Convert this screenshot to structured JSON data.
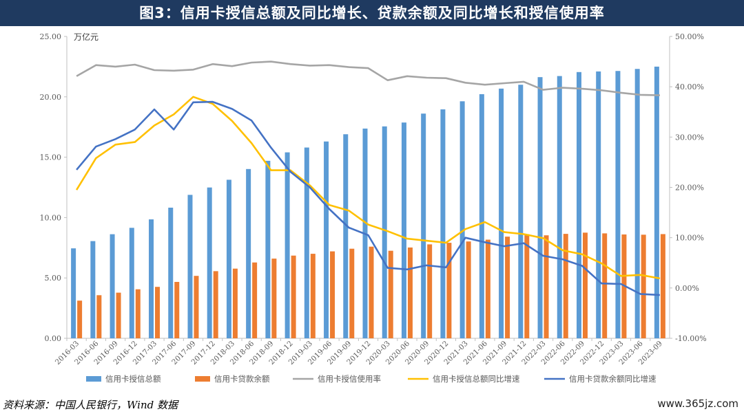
{
  "header": {
    "title": "图3：信用卡授信总额及同比增长、贷款余额及同比增长和授信使用率"
  },
  "footer": {
    "source": "资料来源：中国人民银行，Wind 数据",
    "watermark": "www.365jz.com"
  },
  "colors": {
    "banner": "#1f3a60",
    "blue_bar": "#5b9bd5",
    "orange_bar": "#ed7d31",
    "gray_line": "#a5a5a5",
    "yellow_line": "#ffc000",
    "blue_line": "#4472c4"
  },
  "chart_data": {
    "type": "bar",
    "unit_label": "万亿元",
    "categories": [
      "2016-03",
      "2016-06",
      "2016-09",
      "2016-12",
      "2017-03",
      "2017-06",
      "2017-09",
      "2017-12",
      "2018-03",
      "2018-06",
      "2018-09",
      "2018-12",
      "2019-03",
      "2019-06",
      "2019-09",
      "2019-12",
      "2020-03",
      "2020-06",
      "2020-09",
      "2020-12",
      "2021-03",
      "2021-06",
      "2021-09",
      "2021-12",
      "2022-03",
      "2022-06",
      "2022-09",
      "2022-12",
      "2023-03",
      "2023-06",
      "2023-09"
    ],
    "y_left": {
      "min": 0,
      "max": 25,
      "ticks": [
        "0.00",
        "5.00",
        "10.00",
        "15.00",
        "20.00",
        "25.00"
      ]
    },
    "y_right": {
      "min": -10,
      "max": 50,
      "ticks": [
        "-10.00%",
        "0.00%",
        "10.00%",
        "20.00%",
        "30.00%",
        "40.00%",
        "50.00%"
      ]
    },
    "bar_series": [
      {
        "name": "信用卡授信总额",
        "axis": "left",
        "values": [
          7.45,
          8.05,
          8.62,
          9.15,
          9.85,
          10.82,
          11.88,
          12.49,
          13.13,
          14.02,
          14.7,
          15.4,
          15.8,
          16.3,
          16.9,
          17.37,
          17.55,
          17.87,
          18.61,
          18.96,
          19.63,
          20.22,
          20.68,
          21.0,
          21.63,
          21.72,
          22.05,
          22.1,
          22.14,
          22.31,
          22.5
        ]
      },
      {
        "name": "信用卡贷款余额",
        "axis": "left",
        "values": [
          3.12,
          3.57,
          3.78,
          4.06,
          4.26,
          4.67,
          5.17,
          5.56,
          5.77,
          6.28,
          6.6,
          6.85,
          7.0,
          7.2,
          7.42,
          7.59,
          7.25,
          7.52,
          7.78,
          7.91,
          8.02,
          8.17,
          8.42,
          8.62,
          8.53,
          8.65,
          8.75,
          8.69,
          8.6,
          8.58,
          8.63
        ]
      }
    ],
    "line_series": [
      {
        "name": "信用卡授信使用率",
        "axis": "right",
        "values": [
          42.1,
          44.3,
          44.0,
          44.4,
          43.3,
          43.2,
          43.4,
          44.5,
          44.1,
          44.8,
          45.0,
          44.5,
          44.2,
          44.3,
          43.9,
          43.7,
          41.3,
          42.1,
          41.8,
          41.7,
          40.8,
          40.4,
          40.7,
          41.0,
          39.4,
          39.8,
          39.6,
          39.3,
          38.8,
          38.4,
          38.3
        ]
      },
      {
        "name": "信用卡授信总额同比增速",
        "axis": "right",
        "values": [
          19.5,
          25.8,
          28.5,
          29.0,
          32.3,
          34.5,
          38.0,
          36.6,
          33.2,
          28.8,
          23.4,
          23.4,
          20.4,
          16.5,
          15.4,
          12.6,
          11.3,
          9.8,
          9.4,
          9.0,
          11.7,
          13.1,
          11.1,
          10.7,
          9.9,
          7.5,
          6.7,
          4.9,
          2.4,
          2.6,
          1.9
        ]
      },
      {
        "name": "信用卡贷款余额同比增速",
        "axis": "right",
        "values": [
          23.5,
          28.1,
          29.6,
          31.5,
          35.5,
          31.5,
          36.9,
          37.0,
          35.6,
          33.3,
          27.9,
          23.1,
          20.0,
          15.7,
          12.0,
          10.5,
          4.0,
          3.7,
          4.5,
          4.1,
          10.0,
          9.1,
          8.3,
          8.9,
          6.4,
          5.7,
          4.4,
          0.9,
          0.8,
          -1.2,
          -1.4
        ]
      }
    ],
    "legend_position": "bottom",
    "grid": false
  }
}
